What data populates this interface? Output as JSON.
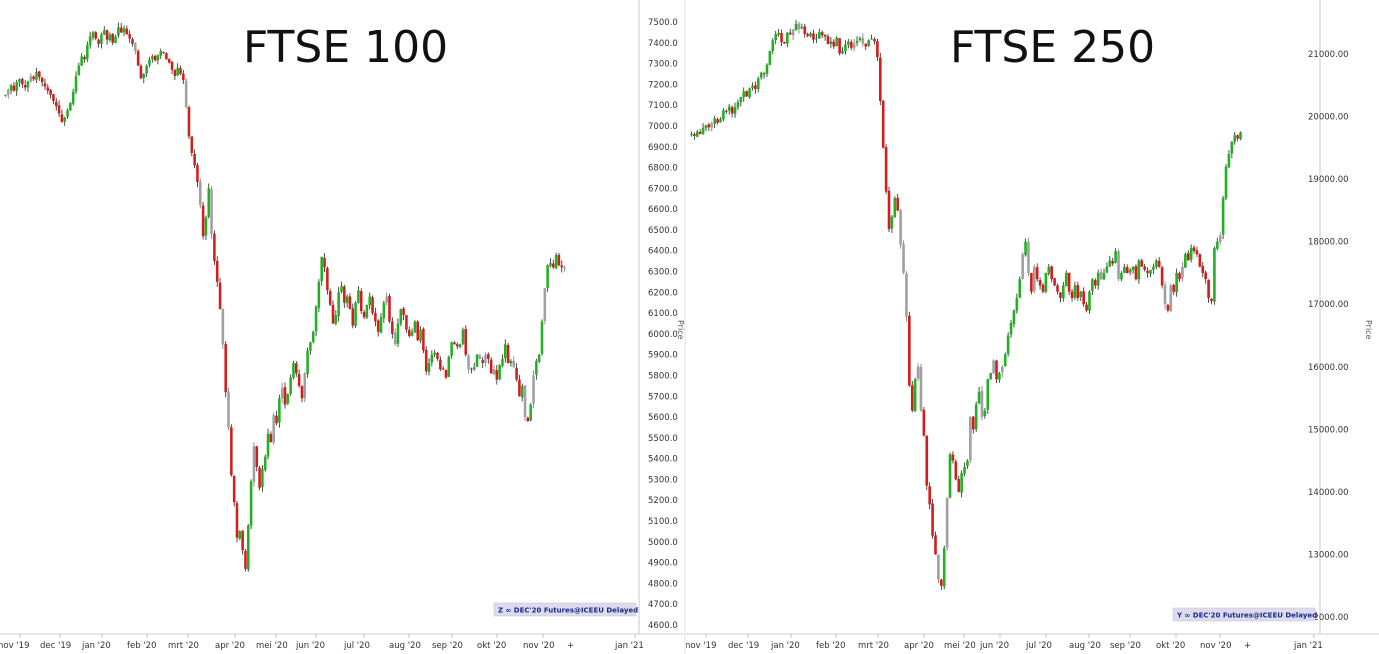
{
  "chart_data": [
    {
      "type": "candlestick",
      "title": "FTSE 100",
      "ylabel": "Price",
      "ylim": [
        4600,
        7500
      ],
      "yticks": [
        "7500.0",
        "7400.0",
        "7300.0",
        "7200.0",
        "7100.0",
        "7000.0",
        "6900.0",
        "6800.0",
        "6700.0",
        "6600.0",
        "6500.0",
        "6400.0",
        "6300.0",
        "6200.0",
        "6100.0",
        "6000.0",
        "5900.0",
        "5800.0",
        "5700.0",
        "5600.0",
        "5500.0",
        "5400.0",
        "5300.0",
        "5200.0",
        "5100.0",
        "5000.0",
        "4900.0",
        "4800.0",
        "4700.0",
        "4600.0"
      ],
      "xticks": [
        "nov '19",
        "dec '19",
        "jan '20",
        "feb '20",
        "mrt '20",
        "apr '20",
        "mei '20",
        "jun '20",
        "jul '20",
        "aug '20",
        "sep '20",
        "okt '20",
        "nov '20",
        "jan '21"
      ],
      "legend": "Z ∞ DEC'20 Futures@ICEEU Delayed",
      "closes": [
        7150,
        7175,
        7195,
        7170,
        7210,
        7225,
        7200,
        7185,
        7215,
        7240,
        7225,
        7260,
        7235,
        7210,
        7190,
        7170,
        7150,
        7120,
        7095,
        7060,
        7020,
        7040,
        7075,
        7110,
        7165,
        7240,
        7290,
        7335,
        7320,
        7390,
        7430,
        7450,
        7420,
        7395,
        7440,
        7460,
        7415,
        7440,
        7400,
        7430,
        7475,
        7450,
        7470,
        7440,
        7420,
        7395,
        7360,
        7290,
        7230,
        7250,
        7290,
        7320,
        7335,
        7315,
        7340,
        7360,
        7355,
        7320,
        7305,
        7270,
        7240,
        7280,
        7250,
        7220,
        7090,
        6950,
        6870,
        6810,
        6730,
        6620,
        6470,
        6560,
        6700,
        6480,
        6350,
        6250,
        6120,
        5950,
        5720,
        5550,
        5320,
        5190,
        5020,
        5050,
        4960,
        4870,
        5080,
        5290,
        5460,
        5360,
        5260,
        5350,
        5410,
        5520,
        5480,
        5610,
        5570,
        5690,
        5740,
        5660,
        5710,
        5790,
        5860,
        5810,
        5750,
        5690,
        5810,
        5920,
        5960,
        6010,
        6130,
        6250,
        6370,
        6320,
        6210,
        6140,
        6050,
        6090,
        6200,
        6230,
        6150,
        6180,
        6120,
        6040,
        6150,
        6210,
        6110,
        6080,
        6140,
        6180,
        6100,
        6060,
        6010,
        6080,
        6150,
        6180,
        6060,
        6000,
        5950,
        6050,
        6120,
        6090,
        6020,
        5990,
        6010,
        6060,
        5970,
        6020,
        5920,
        5820,
        5860,
        5900,
        5910,
        5880,
        5830,
        5830,
        5790,
        5890,
        5960,
        5950,
        5940,
        5950,
        6020,
        5900,
        5830,
        5830,
        5840,
        5900,
        5880,
        5860,
        5900,
        5880,
        5810,
        5830,
        5780,
        5850,
        5880,
        5950,
        5860,
        5870,
        5840,
        5780,
        5700,
        5750,
        5600,
        5580,
        5660,
        5800,
        5870,
        5900,
        6060,
        6220,
        6330,
        6340,
        6320,
        6380,
        6330,
        6320,
        6320
      ],
      "dates_start": "2019-11-01"
    },
    {
      "type": "candlestick",
      "title": "FTSE 250",
      "ylabel": "Price",
      "ylim": [
        12000,
        21500
      ],
      "yticks": [
        "21000.00",
        "20000.00",
        "19000.00",
        "18000.00",
        "17000.00",
        "16000.00",
        "15000.00",
        "14000.00",
        "13000.00",
        "12000.00"
      ],
      "xticks": [
        "nov '19",
        "dec '19",
        "jan '20",
        "feb '20",
        "mrt '20",
        "apr '20",
        "mei '20",
        "jun '20",
        "jul '20",
        "aug '20",
        "sep '20",
        "okt '20",
        "nov '20",
        "jan '21"
      ],
      "legend": "Y ∞ DEC'20 Futures@ICEEU Delayed",
      "closes": [
        19720,
        19690,
        19760,
        19720,
        19820,
        19860,
        19830,
        19890,
        19970,
        19900,
        19960,
        20100,
        20080,
        20160,
        20050,
        20150,
        20230,
        20310,
        20400,
        20320,
        20450,
        20490,
        20440,
        20610,
        20700,
        20680,
        20830,
        21050,
        21220,
        21320,
        21340,
        21190,
        21170,
        21340,
        21310,
        21390,
        21480,
        21400,
        21430,
        21320,
        21290,
        21330,
        21230,
        21250,
        21350,
        21300,
        21280,
        21160,
        21200,
        21120,
        21260,
        21010,
        21050,
        21150,
        21200,
        21100,
        21170,
        21210,
        21250,
        21160,
        21120,
        21220,
        21250,
        21200,
        20950,
        20250,
        19500,
        18800,
        18200,
        18400,
        18700,
        18500,
        17950,
        17500,
        16800,
        15700,
        15300,
        15800,
        16000,
        15300,
        14900,
        14100,
        13800,
        13300,
        13000,
        12600,
        12500,
        13100,
        13900,
        14600,
        14500,
        14200,
        14000,
        14300,
        14400,
        14500,
        15200,
        15000,
        15400,
        15600,
        15200,
        15300,
        15800,
        15900,
        16100,
        15800,
        15900,
        16000,
        16200,
        16500,
        16700,
        16900,
        17100,
        17400,
        17800,
        18000,
        17500,
        17200,
        17600,
        17400,
        17300,
        17200,
        17500,
        17600,
        17400,
        17300,
        17200,
        17100,
        17300,
        17500,
        17200,
        17100,
        17300,
        17100,
        17200,
        17000,
        16900,
        17200,
        17400,
        17300,
        17500,
        17400,
        17500,
        17600,
        17700,
        17650,
        17850,
        17400,
        17500,
        17600,
        17500,
        17550,
        17600,
        17400,
        17700,
        17600,
        17550,
        17500,
        17550,
        17600,
        17700,
        17600,
        17300,
        17000,
        16900,
        17300,
        17200,
        17500,
        17400,
        17600,
        17800,
        17700,
        17900,
        17850,
        17800,
        17600,
        17500,
        17400,
        17100,
        17050,
        17900,
        18000,
        18100,
        18700,
        19200,
        19400,
        19600,
        19700,
        19650,
        19750
      ]
    }
  ]
}
